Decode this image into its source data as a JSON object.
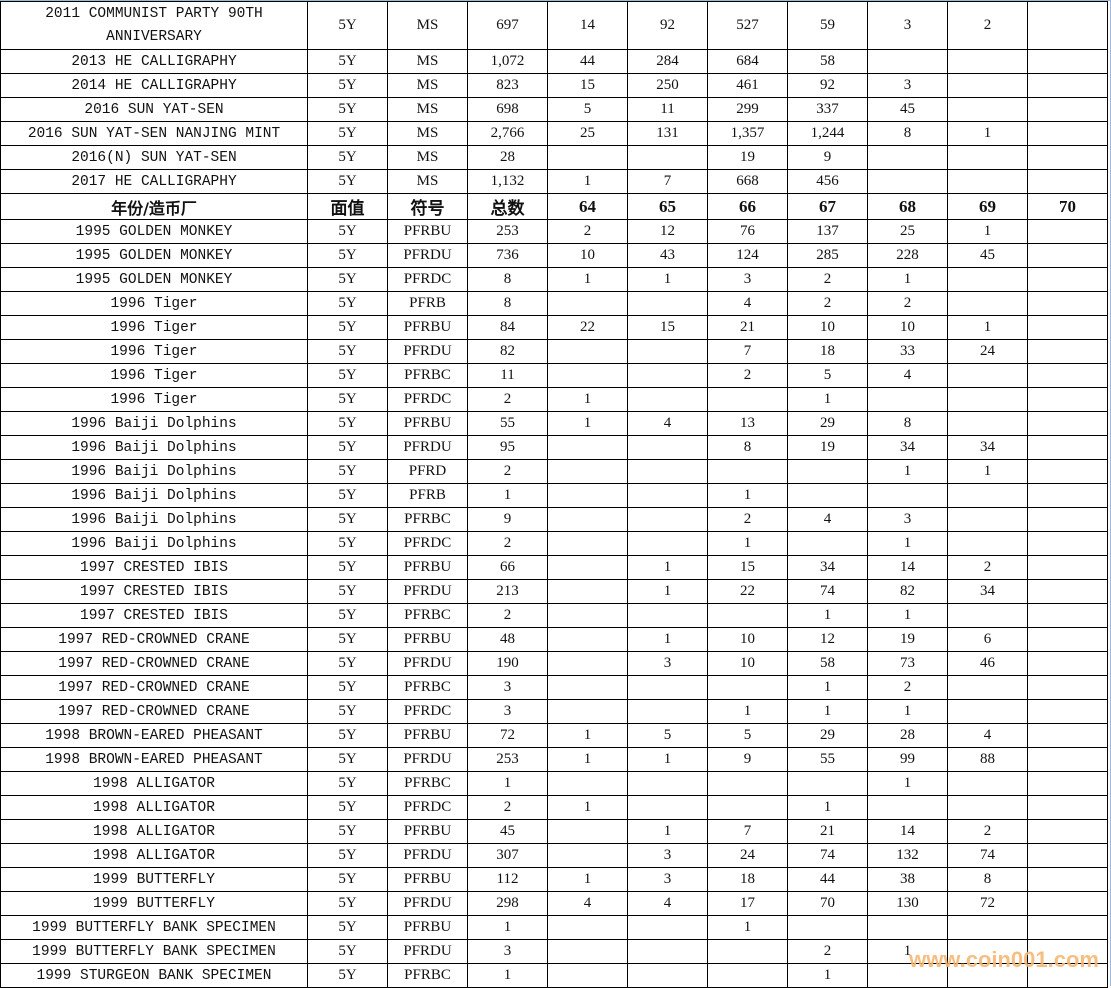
{
  "columns": [
    "年份/造币厂",
    "面值",
    "符号",
    "总数",
    "64",
    "65",
    "66",
    "67",
    "68",
    "69",
    "70"
  ],
  "rows_top": [
    [
      "2011 COMMUNIST PARTY 90TH ANNIVERSARY",
      "5Y",
      "MS",
      "697",
      "14",
      "92",
      "527",
      "59",
      "3",
      "2",
      ""
    ],
    [
      "2013 HE CALLIGRAPHY",
      "5Y",
      "MS",
      "1,072",
      "44",
      "284",
      "684",
      "58",
      "",
      "",
      ""
    ],
    [
      "2014 HE CALLIGRAPHY",
      "5Y",
      "MS",
      "823",
      "15",
      "250",
      "461",
      "92",
      "3",
      "",
      ""
    ],
    [
      "2016 SUN YAT-SEN",
      "5Y",
      "MS",
      "698",
      "5",
      "11",
      "299",
      "337",
      "45",
      "",
      ""
    ],
    [
      "2016 SUN YAT-SEN NANJING MINT",
      "5Y",
      "MS",
      "2,766",
      "25",
      "131",
      "1,357",
      "1,244",
      "8",
      "1",
      ""
    ],
    [
      "2016(N) SUN YAT-SEN",
      "5Y",
      "MS",
      "28",
      "",
      "",
      "19",
      "9",
      "",
      "",
      ""
    ],
    [
      "2017 HE CALLIGRAPHY",
      "5Y",
      "MS",
      "1,132",
      "1",
      "7",
      "668",
      "456",
      "",
      "",
      ""
    ]
  ],
  "rows_bottom": [
    [
      "1995 GOLDEN MONKEY",
      "5Y",
      "PFRBU",
      "253",
      "2",
      "12",
      "76",
      "137",
      "25",
      "1",
      ""
    ],
    [
      "1995 GOLDEN MONKEY",
      "5Y",
      "PFRDU",
      "736",
      "10",
      "43",
      "124",
      "285",
      "228",
      "45",
      ""
    ],
    [
      "1995 GOLDEN MONKEY",
      "5Y",
      "PFRDC",
      "8",
      "1",
      "1",
      "3",
      "2",
      "1",
      "",
      ""
    ],
    [
      "1996 Tiger",
      "5Y",
      "PFRB",
      "8",
      "",
      "",
      "4",
      "2",
      "2",
      "",
      ""
    ],
    [
      "1996 Tiger",
      "5Y",
      "PFRBU",
      "84",
      "22",
      "15",
      "21",
      "10",
      "10",
      "1",
      ""
    ],
    [
      "1996 Tiger",
      "5Y",
      "PFRDU",
      "82",
      "",
      "",
      "7",
      "18",
      "33",
      "24",
      ""
    ],
    [
      "1996 Tiger",
      "5Y",
      "PFRBC",
      "11",
      "",
      "",
      "2",
      "5",
      "4",
      "",
      ""
    ],
    [
      "1996 Tiger",
      "5Y",
      "PFRDC",
      "2",
      "1",
      "",
      "",
      "1",
      "",
      "",
      ""
    ],
    [
      "1996 Baiji Dolphins",
      "5Y",
      "PFRBU",
      "55",
      "1",
      "4",
      "13",
      "29",
      "8",
      "",
      ""
    ],
    [
      "1996 Baiji Dolphins",
      "5Y",
      "PFRDU",
      "95",
      "",
      "",
      "8",
      "19",
      "34",
      "34",
      ""
    ],
    [
      "1996 Baiji Dolphins",
      "5Y",
      "PFRD",
      "2",
      "",
      "",
      "",
      "",
      "1",
      "1",
      ""
    ],
    [
      "1996 Baiji Dolphins",
      "5Y",
      "PFRB",
      "1",
      "",
      "",
      "1",
      "",
      "",
      "",
      ""
    ],
    [
      "1996 Baiji Dolphins",
      "5Y",
      "PFRBC",
      "9",
      "",
      "",
      "2",
      "4",
      "3",
      "",
      ""
    ],
    [
      "1996 Baiji Dolphins",
      "5Y",
      "PFRDC",
      "2",
      "",
      "",
      "1",
      "",
      "1",
      "",
      ""
    ],
    [
      "1997 CRESTED IBIS",
      "5Y",
      "PFRBU",
      "66",
      "",
      "1",
      "15",
      "34",
      "14",
      "2",
      ""
    ],
    [
      "1997 CRESTED IBIS",
      "5Y",
      "PFRDU",
      "213",
      "",
      "1",
      "22",
      "74",
      "82",
      "34",
      ""
    ],
    [
      "1997 CRESTED IBIS",
      "5Y",
      "PFRBC",
      "2",
      "",
      "",
      "",
      "1",
      "1",
      "",
      ""
    ],
    [
      "1997 RED-CROWNED CRANE",
      "5Y",
      "PFRBU",
      "48",
      "",
      "1",
      "10",
      "12",
      "19",
      "6",
      ""
    ],
    [
      "1997 RED-CROWNED CRANE",
      "5Y",
      "PFRDU",
      "190",
      "",
      "3",
      "10",
      "58",
      "73",
      "46",
      ""
    ],
    [
      "1997 RED-CROWNED CRANE",
      "5Y",
      "PFRBC",
      "3",
      "",
      "",
      "",
      "1",
      "2",
      "",
      ""
    ],
    [
      "1997 RED-CROWNED CRANE",
      "5Y",
      "PFRDC",
      "3",
      "",
      "",
      "1",
      "1",
      "1",
      "",
      ""
    ],
    [
      "1998 BROWN-EARED PHEASANT",
      "5Y",
      "PFRBU",
      "72",
      "1",
      "5",
      "5",
      "29",
      "28",
      "4",
      ""
    ],
    [
      "1998 BROWN-EARED PHEASANT",
      "5Y",
      "PFRDU",
      "253",
      "1",
      "1",
      "9",
      "55",
      "99",
      "88",
      ""
    ],
    [
      "1998 ALLIGATOR",
      "5Y",
      "PFRBC",
      "1",
      "",
      "",
      "",
      "",
      "1",
      "",
      ""
    ],
    [
      "1998 ALLIGATOR",
      "5Y",
      "PFRDC",
      "2",
      "1",
      "",
      "",
      "1",
      "",
      "",
      ""
    ],
    [
      "1998 ALLIGATOR",
      "5Y",
      "PFRBU",
      "45",
      "",
      "1",
      "7",
      "21",
      "14",
      "2",
      ""
    ],
    [
      "1998 ALLIGATOR",
      "5Y",
      "PFRDU",
      "307",
      "",
      "3",
      "24",
      "74",
      "132",
      "74",
      ""
    ],
    [
      "1999 BUTTERFLY",
      "5Y",
      "PFRBU",
      "112",
      "1",
      "3",
      "18",
      "44",
      "38",
      "8",
      ""
    ],
    [
      "1999 BUTTERFLY",
      "5Y",
      "PFRDU",
      "298",
      "4",
      "4",
      "17",
      "70",
      "130",
      "72",
      ""
    ],
    [
      "1999 BUTTERFLY BANK SPECIMEN",
      "5Y",
      "PFRBU",
      "1",
      "",
      "",
      "1",
      "",
      "",
      "",
      ""
    ],
    [
      "1999 BUTTERFLY BANK SPECIMEN",
      "5Y",
      "PFRDU",
      "3",
      "",
      "",
      "",
      "2",
      "1",
      "",
      ""
    ],
    [
      "1999 STURGEON BANK SPECIMEN",
      "5Y",
      "PFRBC",
      "1",
      "",
      "",
      "",
      "1",
      "",
      "",
      ""
    ]
  ],
  "watermark": "www.coin001.com",
  "colors": {
    "watermark": "#f6b873",
    "grid": "#000000",
    "frame": "#9db9d8"
  }
}
